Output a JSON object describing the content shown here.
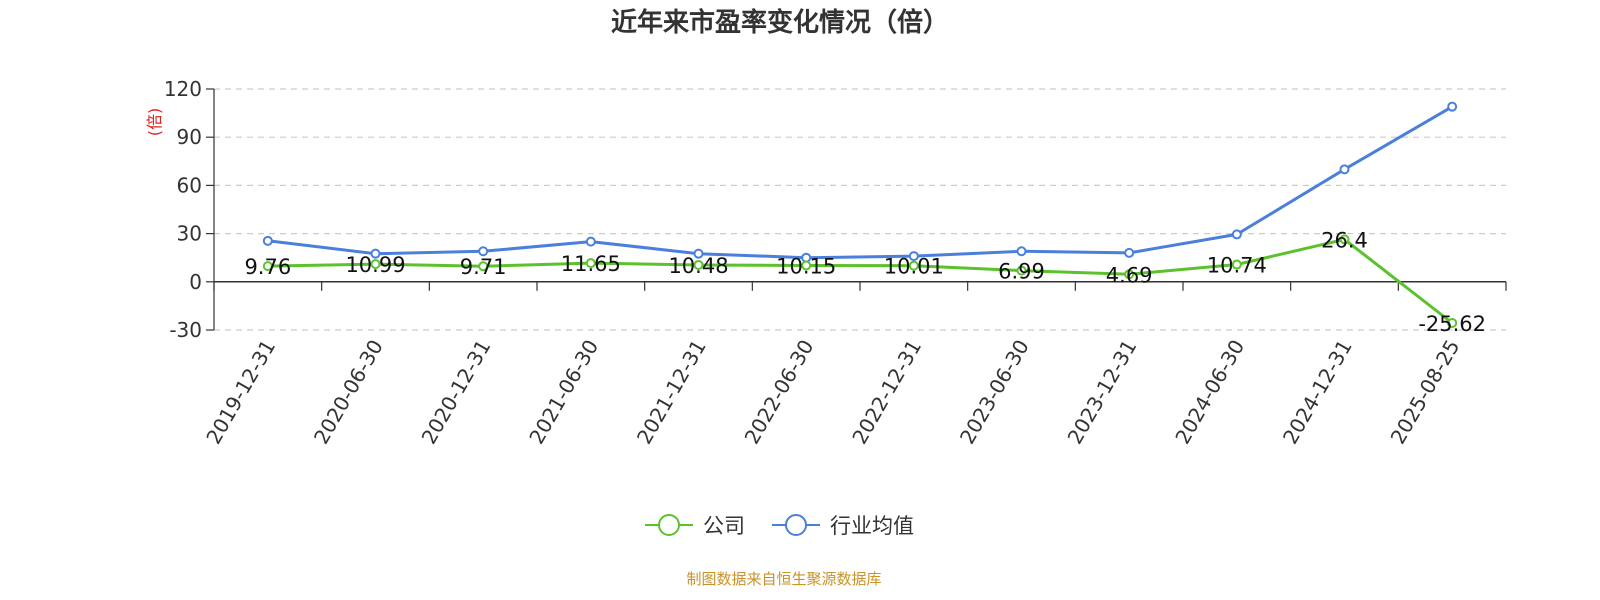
{
  "chart_data": {
    "type": "line",
    "title": "近年来市盈率变化情况（倍）",
    "ylabel": "(倍)",
    "ylim": [
      -30,
      120
    ],
    "yticks": [
      -30,
      0,
      30,
      60,
      90,
      120
    ],
    "grid": true,
    "legend_position": "bottom-center",
    "categories": [
      "2019-12-31",
      "2020-06-30",
      "2020-12-31",
      "2021-06-30",
      "2021-12-31",
      "2022-06-30",
      "2022-12-31",
      "2023-06-30",
      "2023-12-31",
      "2024-06-30",
      "2024-12-31",
      "2025-08-25"
    ],
    "series": [
      {
        "name": "公司",
        "color": "#5cc22b",
        "values": [
          9.76,
          10.99,
          9.71,
          11.65,
          10.48,
          10.15,
          10.01,
          6.99,
          4.69,
          10.74,
          26.4,
          -25.62
        ],
        "labels": [
          "9.76",
          "10.99",
          "9.71",
          "11.65",
          "10.48",
          "10.15",
          "10.01",
          "6.99",
          "4.69",
          "10.74",
          "26.4",
          "-25.62"
        ]
      },
      {
        "name": "行业均值",
        "color": "#4a7fdb",
        "values": [
          25.5,
          17.5,
          19,
          25,
          17.5,
          15,
          16,
          19,
          18,
          29.5,
          70,
          109
        ]
      }
    ],
    "source": "制图数据来自恒生聚源数据库",
    "source_color": "#c8922a",
    "ylabel_color": "#e02020"
  }
}
